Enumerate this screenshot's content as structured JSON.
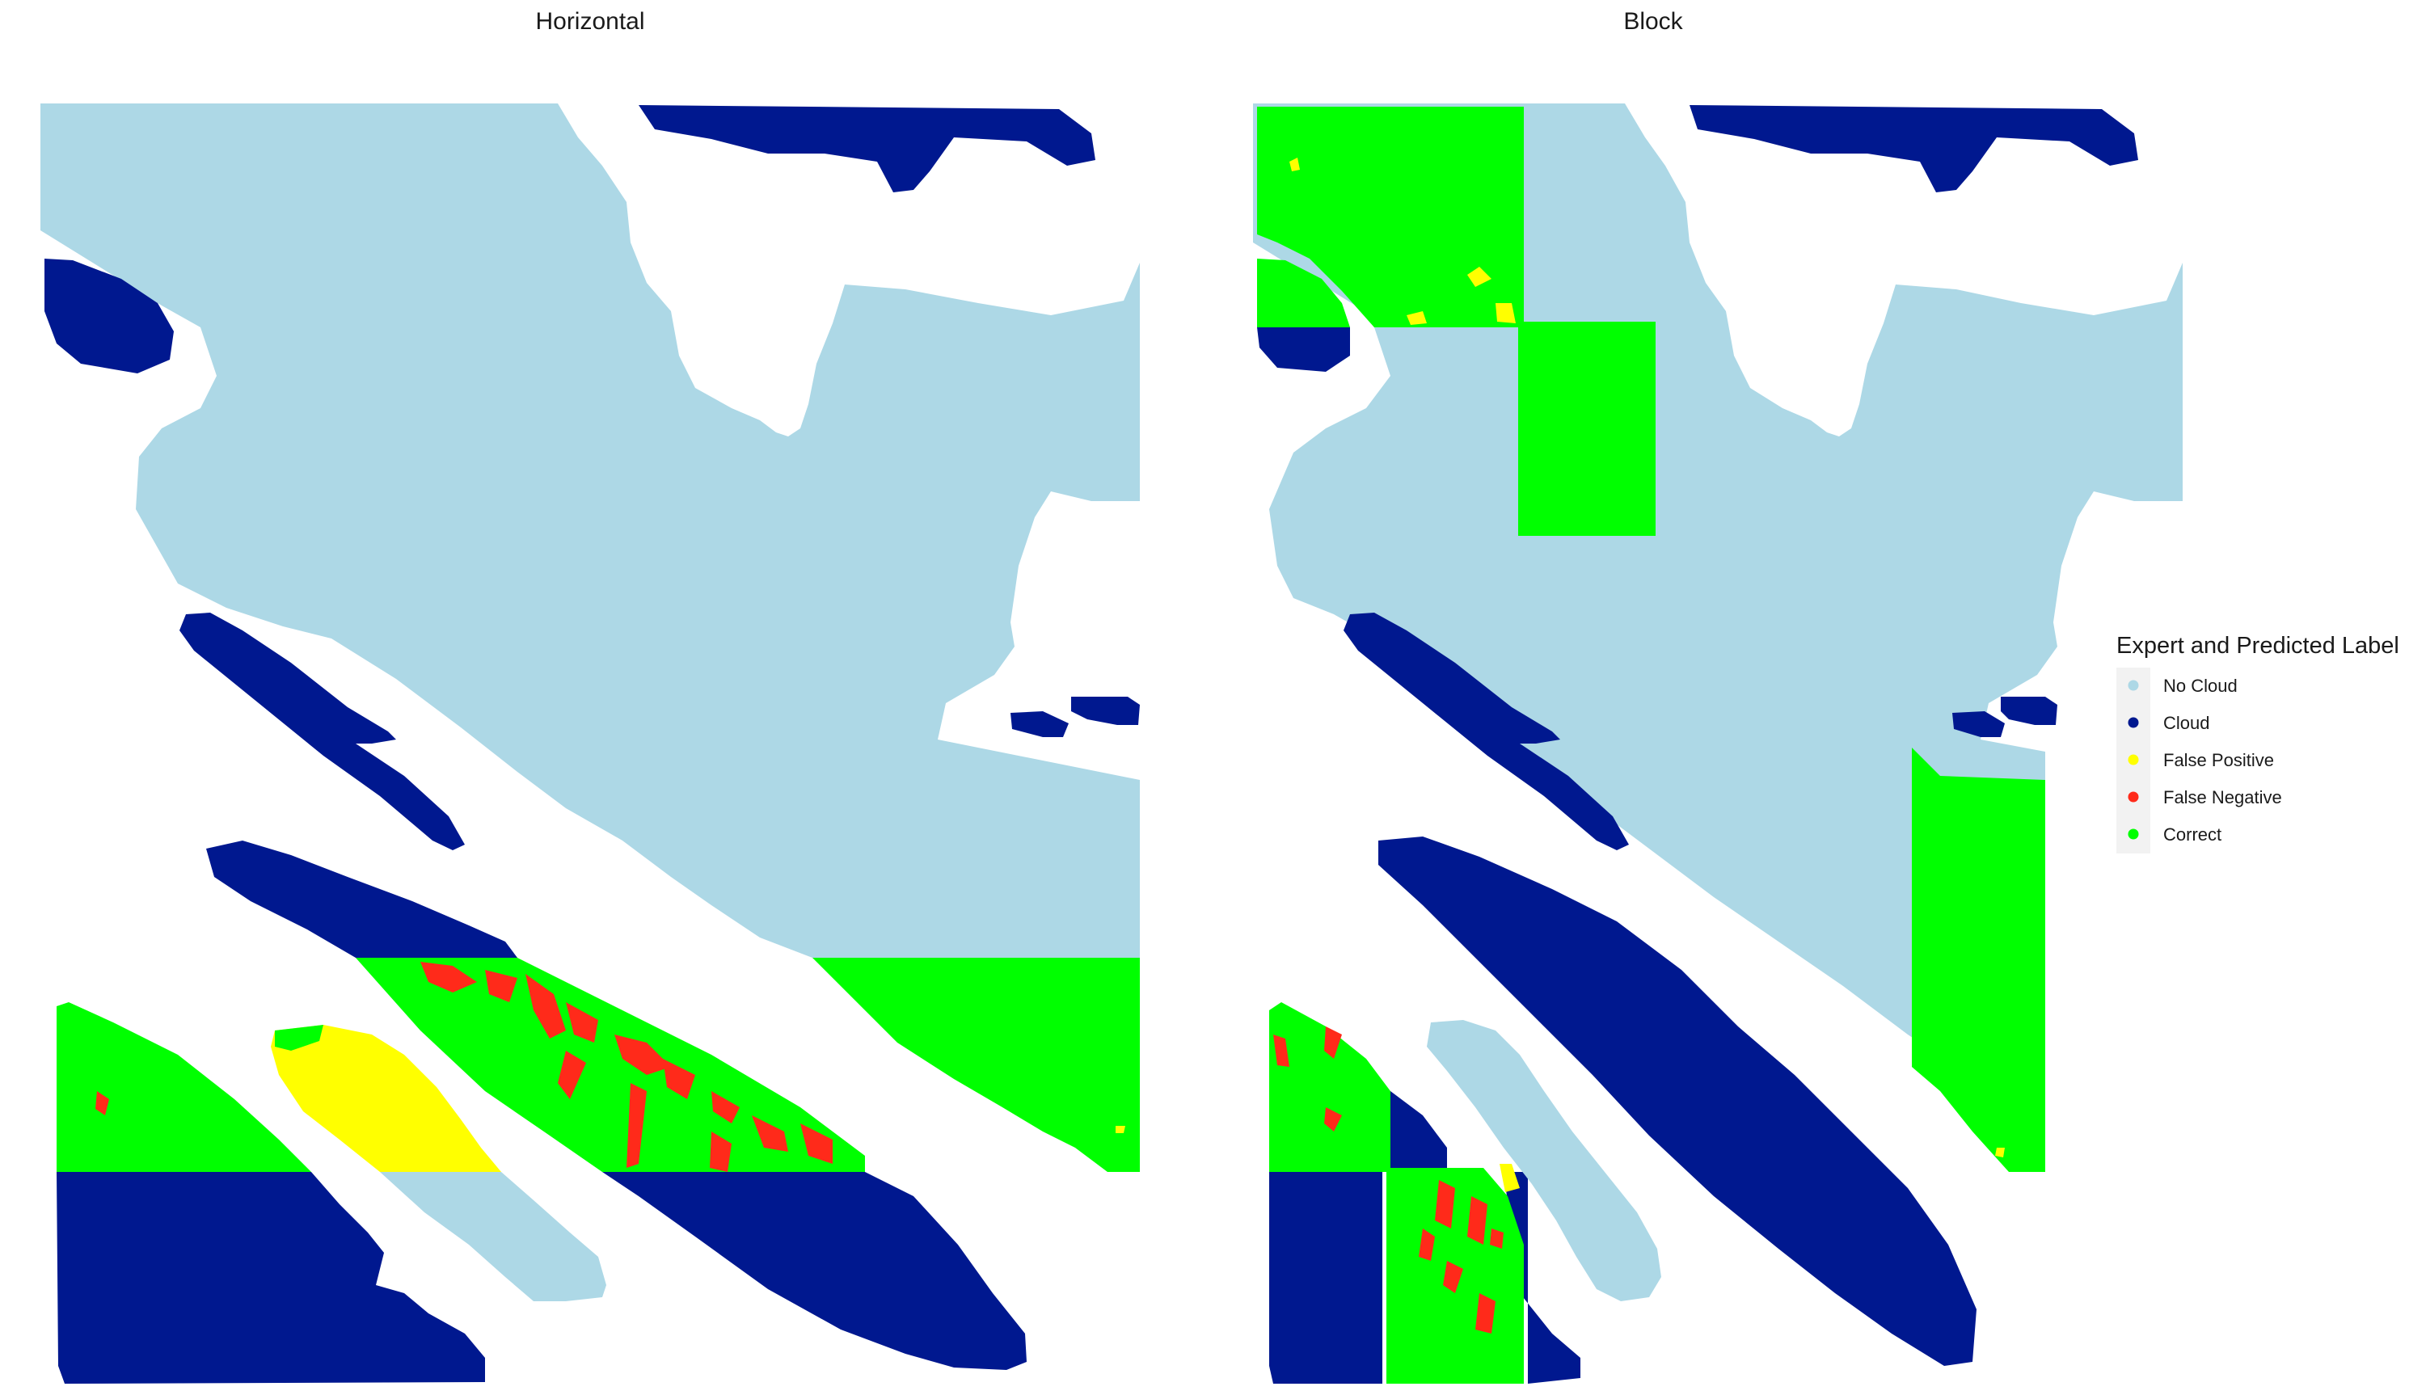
{
  "chart_data": [
    {
      "type": "scatter",
      "title": "Horizontal",
      "xlabel": "",
      "ylabel": "",
      "grid": false,
      "axes": false,
      "legend": "right"
    },
    {
      "type": "scatter",
      "title": "Block",
      "xlabel": "",
      "ylabel": "",
      "grid": false,
      "axes": false,
      "legend": "right"
    }
  ],
  "legend": {
    "title": "Expert and Predicted Label",
    "placement": "right",
    "items": [
      {
        "label": "No Cloud",
        "color": "#ADD8E6"
      },
      {
        "label": "Cloud",
        "color": "#00188F"
      },
      {
        "label": "False Positive",
        "color": "#FFFF00"
      },
      {
        "label": "False Negative",
        "color": "#FF2A1A"
      },
      {
        "label": "Correct",
        "color": "#00FF00"
      }
    ]
  },
  "colors": {
    "no_cloud": "#ADD8E6",
    "cloud": "#00188F",
    "false_positive": "#FFFF00",
    "false_negative": "#FF2A1A",
    "correct": "#00FF00"
  }
}
